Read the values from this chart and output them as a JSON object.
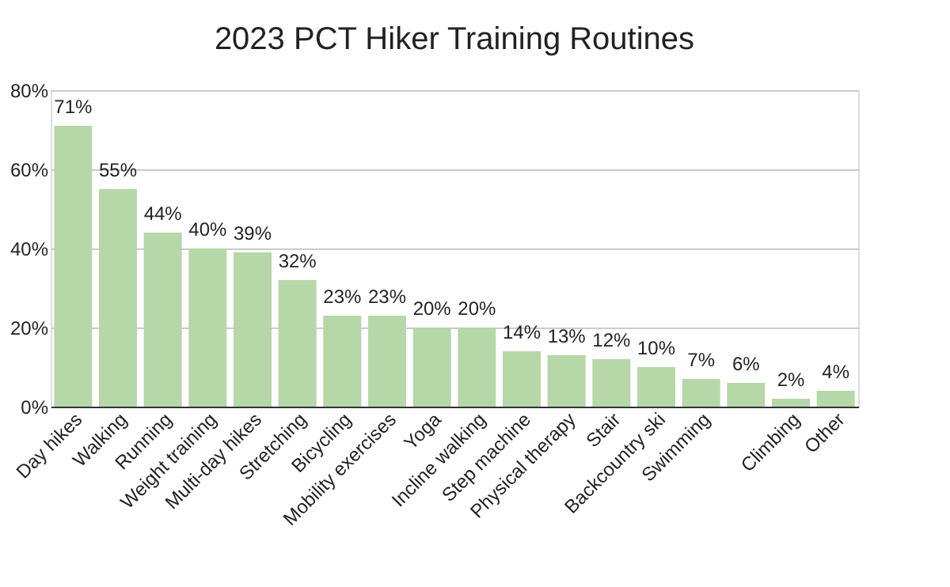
{
  "chart_data": {
    "type": "bar",
    "title": "2023 PCT Hiker Training Routines",
    "categories": [
      "Day hikes",
      "Walking",
      "Running",
      "Weight training",
      "Multi-day hikes",
      "Stretching",
      "Bicycling",
      "Mobility exercises",
      "Yoga",
      "Incline walking",
      "Step machine",
      "Physical therapy",
      "Stair",
      "Backcountry ski",
      "Swimming",
      null,
      "Climbing",
      "Other"
    ],
    "values": [
      71,
      55,
      44,
      40,
      39,
      32,
      23,
      23,
      20,
      20,
      14,
      13,
      12,
      10,
      7,
      6,
      2,
      4
    ],
    "value_labels": [
      "71%",
      "55%",
      "44%",
      "40%",
      "39%",
      "32%",
      "23%",
      "23%",
      "20%",
      "20%",
      "14%",
      "13%",
      "12%",
      "10%",
      "7%",
      "6%",
      "2%",
      "4%"
    ],
    "color": "#b6d7a8",
    "ylim": [
      0,
      80
    ],
    "yticks": [
      {
        "value": 0,
        "label": "0%"
      },
      {
        "value": 20,
        "label": "20%"
      },
      {
        "value": 40,
        "label": "40%"
      },
      {
        "value": 60,
        "label": "60%"
      },
      {
        "value": 80,
        "label": "80%"
      }
    ],
    "grid": "y"
  }
}
